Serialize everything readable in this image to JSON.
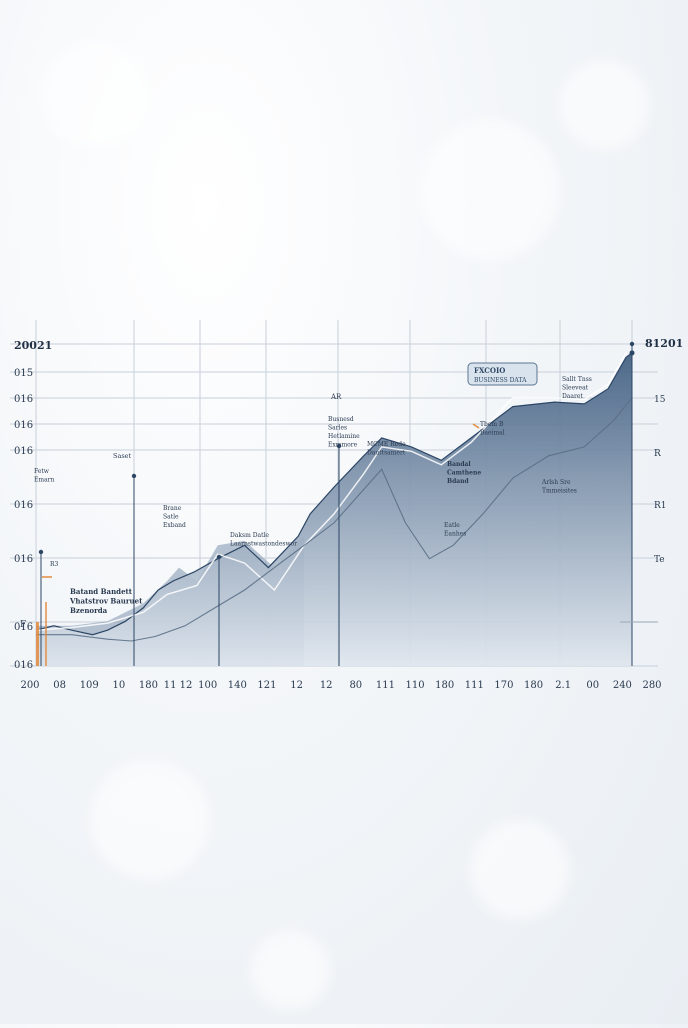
{
  "chart_data": {
    "type": "area",
    "title_left": "20021",
    "title_right": "81201",
    "legend_box": {
      "line1": "FXCOIO",
      "line2": "BUSINESS DATA"
    },
    "x_tick_labels": [
      "200",
      "08",
      "109",
      "10",
      "180",
      "11 12",
      "100",
      "140",
      "121",
      "12",
      "12",
      "80",
      "111",
      "110",
      "180",
      "111",
      "170",
      "180",
      "2.1",
      "00",
      "240",
      "280"
    ],
    "y_tick_labels_left": [
      "015",
      "016",
      "016",
      "016",
      "016",
      "016",
      "016",
      "016"
    ],
    "y_tick_labels_right": [
      "15",
      "R",
      "R1",
      "Te"
    ],
    "grid": true,
    "colors": {
      "area_top": "#3f5d80",
      "area_bottom": "#dfe6ee",
      "back_area": "#7d94ad",
      "front_line": "#ffffff",
      "lower_line": "#5a6f86",
      "grid": "#c8d0da",
      "legend_bg": "#d8e3ee",
      "legend_border": "#5d7590",
      "accent_orange": "#e28a3c"
    },
    "series": [
      {
        "kind": "area",
        "x": [
          0,
          3.0,
          6.0,
          9.5,
          12.0,
          15.0,
          18.0,
          20.5,
          23.0,
          26.5,
          30.5,
          35.0,
          39.0,
          44.0,
          46.0,
          50.0,
          55.0,
          58.0,
          63.0,
          68.0,
          73.0,
          80.0,
          87.0,
          92.0,
          96.0,
          99.0,
          100
        ],
        "y": [
          4,
          4.5,
          4.0,
          3.5,
          4.0,
          5.0,
          6.5,
          8.5,
          9.5,
          10.5,
          12.0,
          13.5,
          11.0,
          14.5,
          17.0,
          20.0,
          23.5,
          25.5,
          24.5,
          23.0,
          25.5,
          29.0,
          29.5,
          29.3,
          31.0,
          34.5,
          35.0
        ]
      },
      {
        "kind": "back_area",
        "x": [
          0,
          6.0,
          12.0,
          18.0,
          22.0,
          24.0,
          27.0,
          30.5,
          35.0,
          40.0,
          45.0
        ],
        "y": [
          4.5,
          4.5,
          5.0,
          7.0,
          9.5,
          11.0,
          9.5,
          13.5,
          14.0,
          11.0,
          14.5
        ]
      },
      {
        "kind": "line_white",
        "x": [
          0,
          6.0,
          12.0,
          18.0,
          22.0,
          27.0,
          30.5,
          35.0,
          40.0,
          45.0,
          50.0,
          55.0,
          58.0,
          63.0,
          68.0,
          73.0,
          80.0,
          87.0,
          92.0,
          96.0,
          99.0
        ],
        "y": [
          4.0,
          4.3,
          4.8,
          6.0,
          8.0,
          9.0,
          12.5,
          11.5,
          8.5,
          13.5,
          17.0,
          21.5,
          24.5,
          24.0,
          22.5,
          25.0,
          30.0,
          30.0,
          29.8,
          31.5,
          35.0
        ]
      },
      {
        "kind": "line_lower",
        "x": [
          0,
          6.0,
          12.0,
          16.0,
          20.0,
          25.0,
          30.0,
          35.0,
          40.0,
          45.0,
          50.0,
          54.0,
          58.0,
          62.0,
          66.0,
          70.0,
          75.0,
          80.0,
          86.0,
          92.0,
          97.0,
          100
        ],
        "y": [
          3.5,
          3.5,
          3.0,
          2.8,
          3.3,
          4.5,
          6.5,
          8.5,
          11.0,
          13.5,
          16.0,
          19.0,
          22.0,
          16.0,
          12.0,
          13.5,
          17.0,
          21.0,
          23.5,
          24.5,
          27.5,
          30.0
        ]
      }
    ],
    "annotations": [
      {
        "key": "a1",
        "lines": [
          "Fetw",
          "Emarn"
        ]
      },
      {
        "key": "a2",
        "lines": [
          "Saset"
        ]
      },
      {
        "key": "a3",
        "lines": [
          "R3"
        ]
      },
      {
        "key": "a4",
        "lines": [
          "Batand Bandett",
          "Vhatstrov Bauruet",
          "Bzenorda"
        ]
      },
      {
        "key": "a5",
        "lines": [
          "Brane",
          "Satle",
          "Exband"
        ]
      },
      {
        "key": "a6",
        "lines": [
          "Daksm Datle",
          "Laarnstwastondeswor"
        ]
      },
      {
        "key": "a7",
        "lines": [
          "AR"
        ]
      },
      {
        "key": "a8",
        "lines": [
          "Busnesd",
          "Sarles",
          "Hetlamine",
          "Exmmore"
        ]
      },
      {
        "key": "a9",
        "lines": [
          "MCME Rede",
          "Dauttsamert"
        ]
      },
      {
        "key": "a10",
        "lines": [
          "Bandal",
          "Camthene",
          "Bdand"
        ]
      },
      {
        "key": "a11",
        "lines": [
          "Tbem B",
          "Baeimal"
        ]
      },
      {
        "key": "a12",
        "lines": [
          "Eatle",
          "Eanhes"
        ]
      },
      {
        "key": "a13",
        "lines": [
          "Arlsh Sre",
          "Tmmeisites"
        ]
      },
      {
        "key": "a14",
        "lines": [
          "Sallt Tnss",
          "Sleeveat",
          "Daaret"
        ]
      },
      {
        "key": "a15",
        "lines": [
          "F"
        ]
      }
    ]
  }
}
